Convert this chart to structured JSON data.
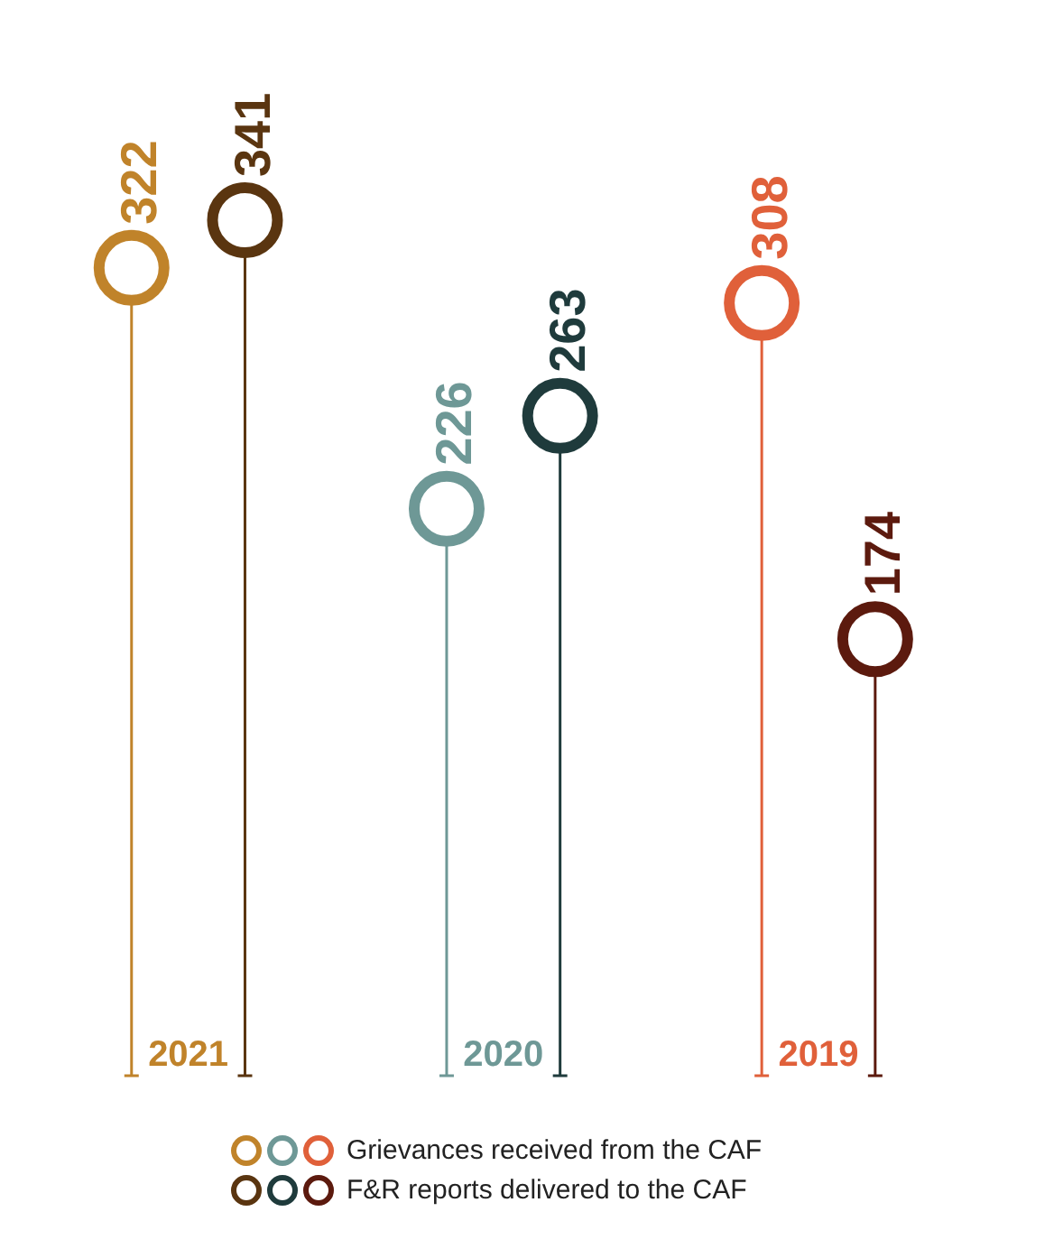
{
  "chart_data": {
    "type": "lollipop",
    "categories": [
      "2021",
      "2020",
      "2019"
    ],
    "series": [
      {
        "name": "Grievances received from the CAF",
        "colors": [
          "#c0832a",
          "#6e9896",
          "#e0603a"
        ],
        "values": [
          322,
          226,
          308
        ]
      },
      {
        "name": "F&R reports delivered to the CAF",
        "colors": [
          "#5a3510",
          "#1f3b3c",
          "#5c1a0e"
        ],
        "values": [
          341,
          263,
          174
        ]
      }
    ],
    "data_labels": true,
    "legend": "bottom",
    "marker": "circle"
  }
}
